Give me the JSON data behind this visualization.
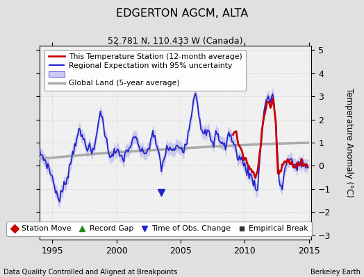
{
  "title": "EDGERTON AGCM, ALTA",
  "subtitle": "52.781 N, 110.433 W (Canada)",
  "ylabel": "Temperature Anomaly (°C)",
  "xlabel_left": "Data Quality Controlled and Aligned at Breakpoints",
  "xlabel_right": "Berkeley Earth",
  "ylim": [
    -3.2,
    5.2
  ],
  "xlim": [
    1994.0,
    2015.2
  ],
  "yticks": [
    -3,
    -2,
    -1,
    0,
    1,
    2,
    3,
    4,
    5
  ],
  "xticks": [
    1995,
    2000,
    2005,
    2010,
    2015
  ],
  "bg_color": "#e0e0e0",
  "plot_bg_color": "#f0f0f0",
  "reg_color": "#2222cc",
  "reg_shade_color": "#aaaaee",
  "station_color": "#cc0000",
  "global_color": "#aaaaaa",
  "legend_items": [
    {
      "label": "This Temperature Station (12-month average)",
      "color": "#cc0000",
      "lw": 2.0
    },
    {
      "label": "Regional Expectation with 95% uncertainty",
      "color": "#2222cc",
      "lw": 1.5
    },
    {
      "label": "Global Land (5-year average)",
      "color": "#aaaaaa",
      "lw": 2.5
    }
  ],
  "marker_legend": [
    {
      "label": "Station Move",
      "color": "#cc0000",
      "marker": "D"
    },
    {
      "label": "Record Gap",
      "color": "#228B22",
      "marker": "^"
    },
    {
      "label": "Time of Obs. Change",
      "color": "#2222cc",
      "marker": "v"
    },
    {
      "label": "Empirical Break",
      "color": "#333333",
      "marker": "s"
    }
  ],
  "obs_change_year": 2003.5
}
